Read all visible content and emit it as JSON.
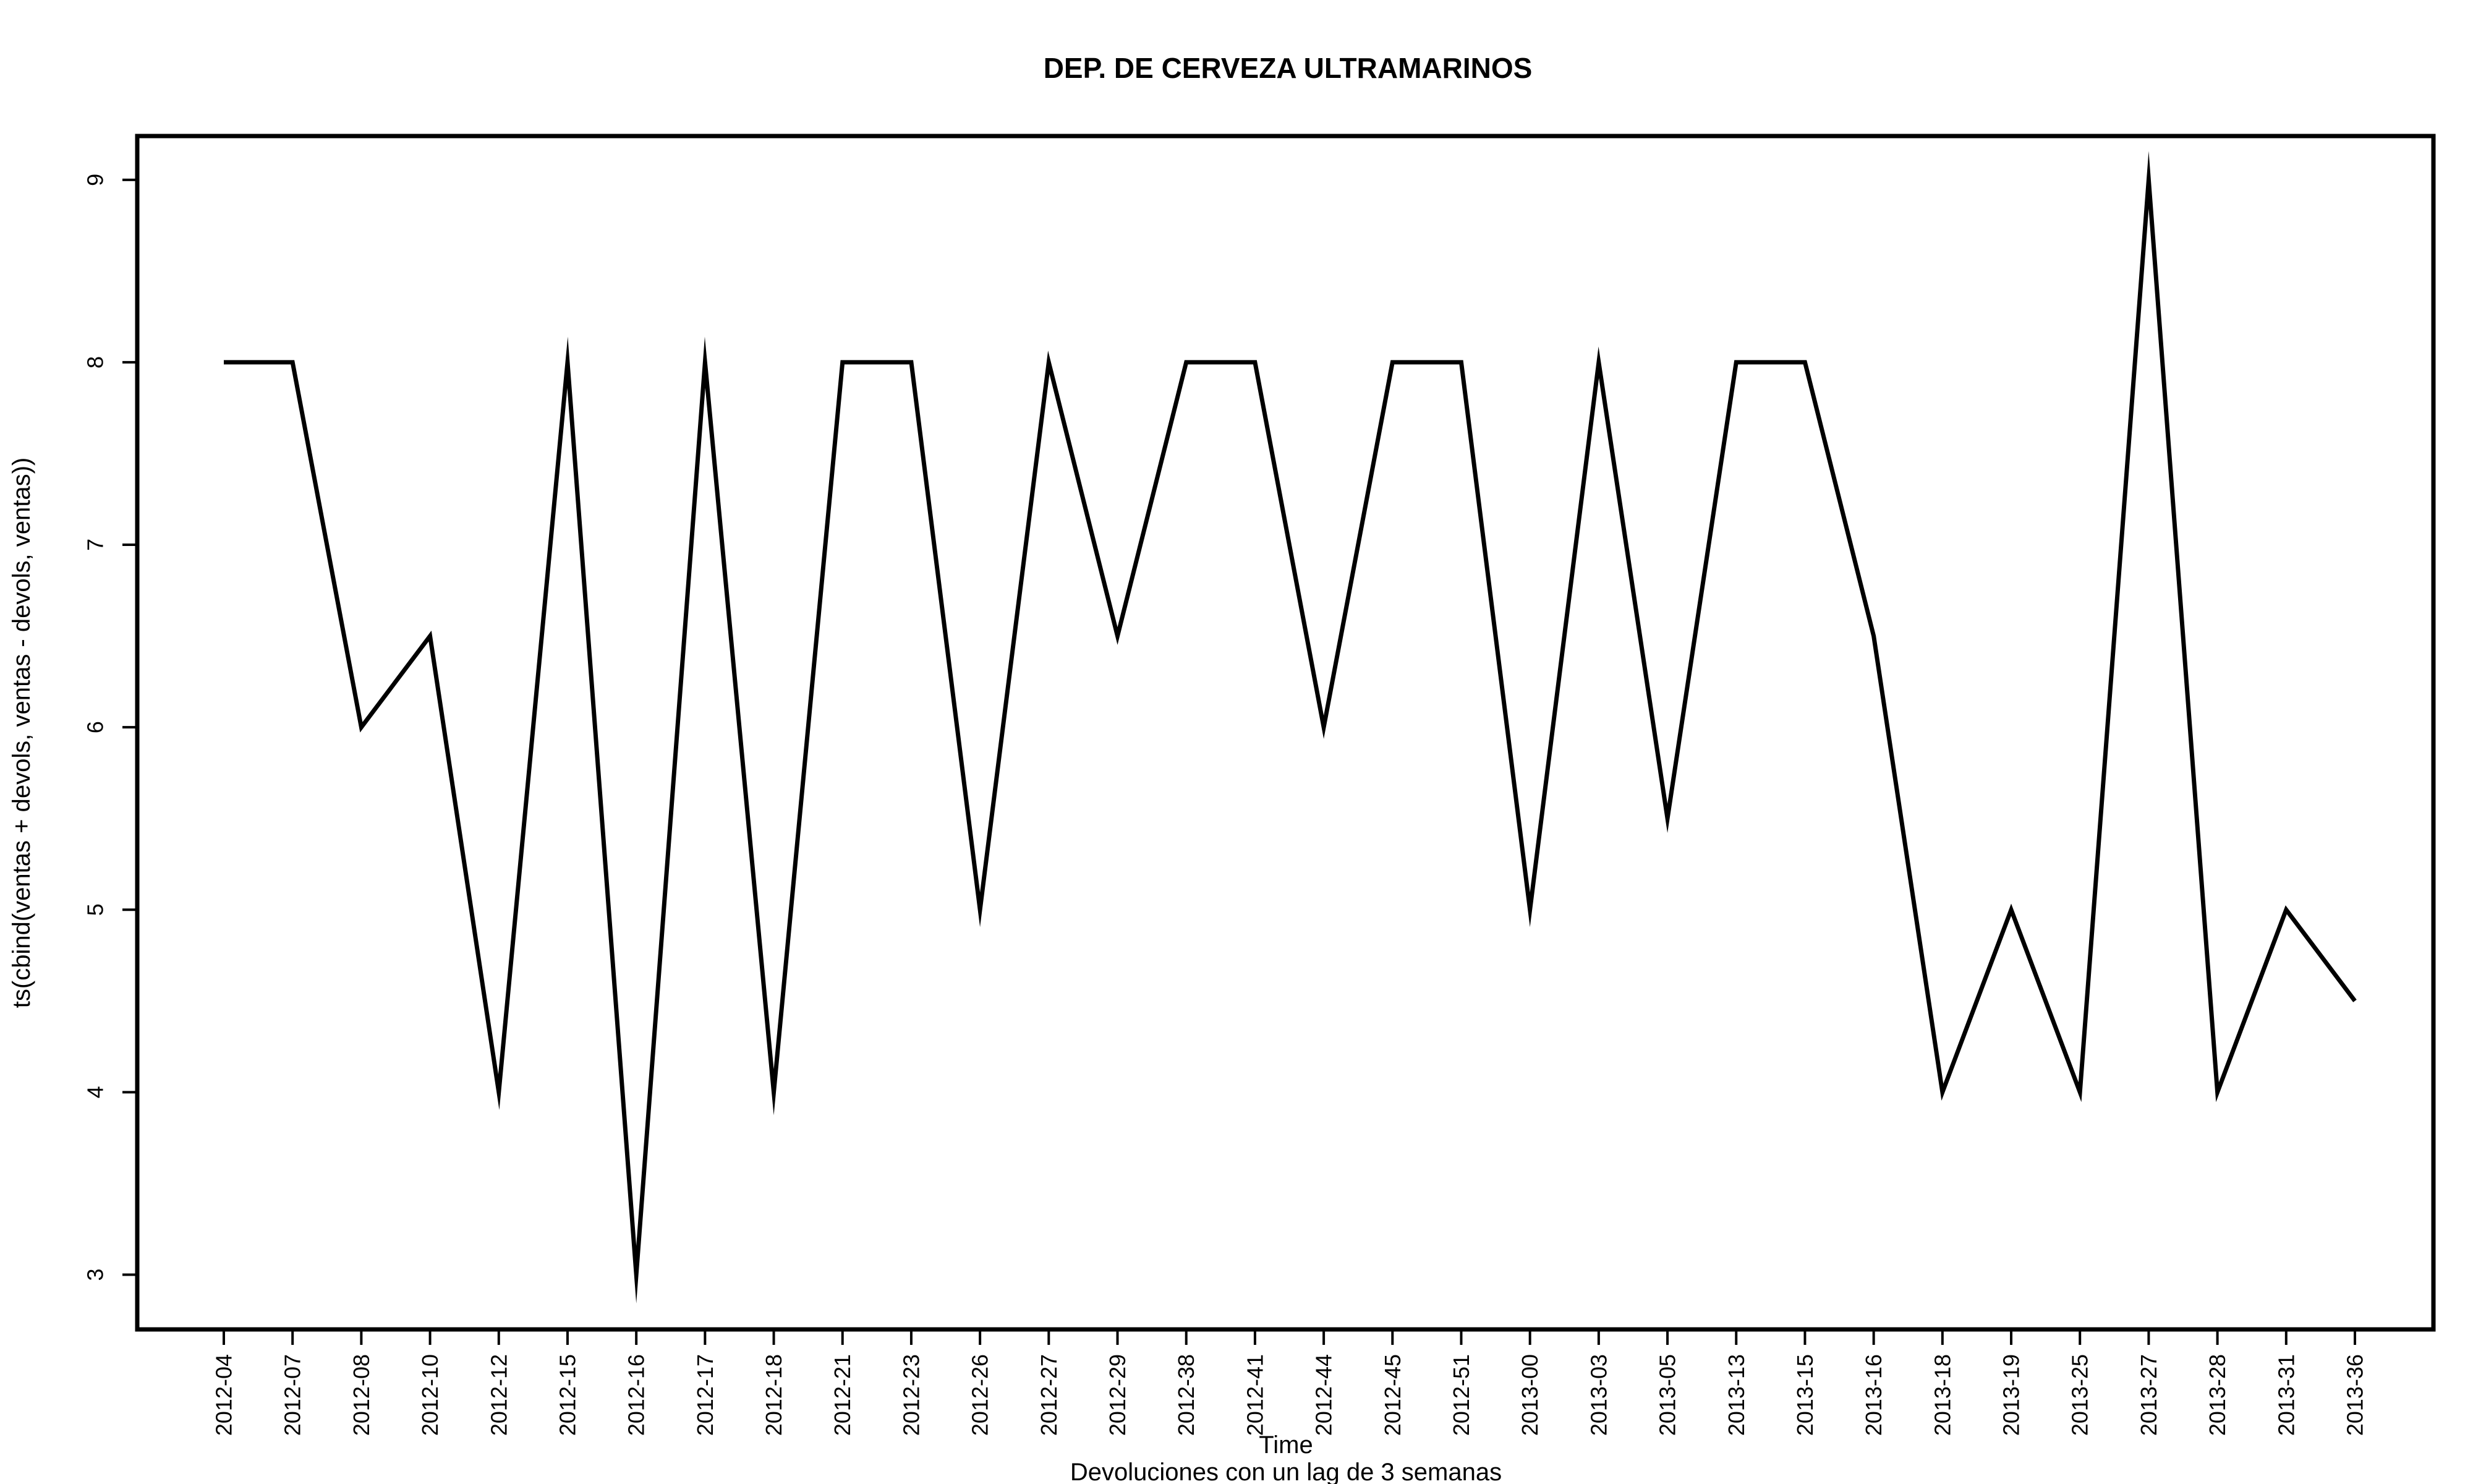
{
  "chart_data": {
    "type": "line",
    "title": "DEP. DE CERVEZA ULTRAMARINOS",
    "xlabel": "Time",
    "subtitle": "Devoluciones con un lag de 3 semanas",
    "ylabel": "ts(cbind(ventas + devols, ventas - devols, ventas))",
    "categories": [
      "2012-04",
      "2012-07",
      "2012-08",
      "2012-10",
      "2012-12",
      "2012-15",
      "2012-16",
      "2012-17",
      "2012-18",
      "2012-21",
      "2012-23",
      "2012-26",
      "2012-27",
      "2012-29",
      "2012-38",
      "2012-41",
      "2012-44",
      "2012-45",
      "2012-51",
      "2013-00",
      "2013-03",
      "2013-05",
      "2013-13",
      "2013-15",
      "2013-16",
      "2013-18",
      "2013-19",
      "2013-25",
      "2013-27",
      "2013-28",
      "2013-31",
      "2013-36"
    ],
    "values": [
      8,
      8,
      6,
      6.5,
      4,
      8,
      3,
      8,
      4,
      8,
      8,
      5,
      8,
      6.5,
      8,
      8,
      6,
      8,
      8,
      5,
      8,
      5.5,
      8,
      8,
      6.5,
      4,
      5,
      4,
      9,
      4,
      5,
      4.5
    ],
    "yticks": [
      3,
      4,
      5,
      6,
      7,
      8,
      9
    ],
    "ylim": [
      2.7,
      9.24
    ],
    "grid": false,
    "line_color": "#000000"
  }
}
